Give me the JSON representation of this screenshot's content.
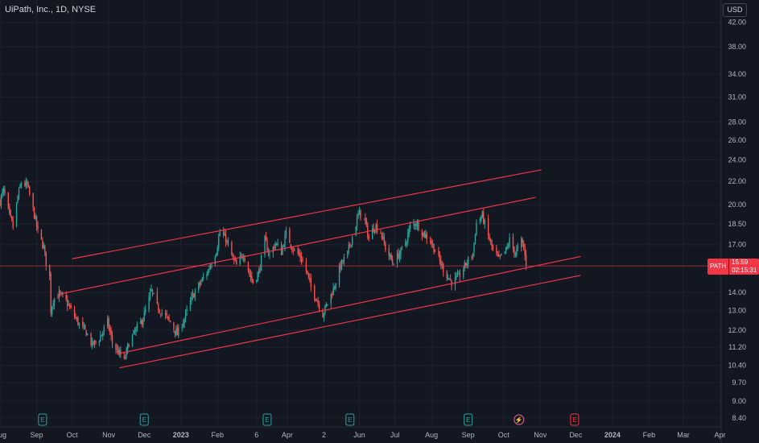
{
  "header": {
    "title": "UiPath, Inc., 1D, NYSE",
    "currency": "USD"
  },
  "price_tag": {
    "symbol": "PATH",
    "price": "15.59",
    "countdown": "02:15:31"
  },
  "colors": {
    "background": "#131722",
    "up": "#26a69a",
    "down": "#ef5350",
    "channel": "#f23645",
    "price_line": "#f23645",
    "earnings": "#26a69a",
    "upcoming_earnings": "#f23645"
  },
  "chart_data": {
    "type": "candlestick",
    "scale": "log",
    "ylim": [
      8.1,
      44.5
    ],
    "y_ticks": [
      42.0,
      38.0,
      34.0,
      31.0,
      28.0,
      26.0,
      24.0,
      22.0,
      20.0,
      18.5,
      17.0,
      15.59,
      14.0,
      13.0,
      12.0,
      11.2,
      10.4,
      9.7,
      9.0,
      8.4
    ],
    "y_tick_labels": [
      "42.00",
      "38.00",
      "34.00",
      "31.00",
      "28.00",
      "26.00",
      "24.00",
      "22.00",
      "20.00",
      "18.50",
      "17.00",
      "15.59",
      "14.00",
      "13.00",
      "12.00",
      "11.20",
      "10.40",
      "9.70",
      "9.00",
      "8.40"
    ],
    "x_range": [
      "2022-08-01",
      "2024-04-02"
    ],
    "x_ticks": [
      {
        "date": "2022-08-01",
        "label": "Aug"
      },
      {
        "date": "2022-09-01",
        "label": "Sep"
      },
      {
        "date": "2022-10-01",
        "label": "Oct"
      },
      {
        "date": "2022-11-01",
        "label": "Nov"
      },
      {
        "date": "2022-12-01",
        "label": "Dec"
      },
      {
        "date": "2023-01-01",
        "label": "2023"
      },
      {
        "date": "2023-02-01",
        "label": "Feb"
      },
      {
        "date": "2023-03-06",
        "label": "6"
      },
      {
        "date": "2023-04-01",
        "label": "Apr"
      },
      {
        "date": "2023-05-02",
        "label": "2"
      },
      {
        "date": "2023-06-01",
        "label": "Jun"
      },
      {
        "date": "2023-07-01",
        "label": "Jul"
      },
      {
        "date": "2023-08-01",
        "label": "Aug"
      },
      {
        "date": "2023-09-01",
        "label": "Sep"
      },
      {
        "date": "2023-10-01",
        "label": "Oct"
      },
      {
        "date": "2023-11-01",
        "label": "Nov"
      },
      {
        "date": "2023-12-01",
        "label": "Dec"
      },
      {
        "date": "2024-01-01",
        "label": "2024"
      },
      {
        "date": "2024-02-01",
        "label": "Feb"
      },
      {
        "date": "2024-03-01",
        "label": "Mar"
      },
      {
        "date": "2024-04-01",
        "label": "Apr"
      }
    ],
    "close_path": [
      [
        "2022-08-01",
        20.3
      ],
      [
        "2022-08-04",
        21.2
      ],
      [
        "2022-08-09",
        19.1
      ],
      [
        "2022-08-12",
        18.3
      ],
      [
        "2022-08-16",
        20.6
      ],
      [
        "2022-08-19",
        21.9
      ],
      [
        "2022-08-24",
        21.6
      ],
      [
        "2022-08-29",
        19.6
      ],
      [
        "2022-09-02",
        17.9
      ],
      [
        "2022-09-07",
        16.8
      ],
      [
        "2022-09-09",
        15.8
      ],
      [
        "2022-09-12",
        14.9
      ],
      [
        "2022-09-13",
        13.0
      ],
      [
        "2022-09-15",
        13.6
      ],
      [
        "2022-09-20",
        13.9
      ],
      [
        "2022-09-26",
        13.5
      ],
      [
        "2022-10-01",
        12.9
      ],
      [
        "2022-10-07",
        12.3
      ],
      [
        "2022-10-13",
        11.9
      ],
      [
        "2022-10-18",
        11.3
      ],
      [
        "2022-10-24",
        11.6
      ],
      [
        "2022-10-31",
        12.4
      ],
      [
        "2022-11-04",
        11.4
      ],
      [
        "2022-11-10",
        10.9
      ],
      [
        "2022-11-14",
        10.6
      ],
      [
        "2022-11-18",
        11.4
      ],
      [
        "2022-11-24",
        12.0
      ],
      [
        "2022-11-30",
        12.6
      ],
      [
        "2022-12-05",
        13.6
      ],
      [
        "2022-12-07",
        14.1
      ],
      [
        "2022-12-12",
        13.2
      ],
      [
        "2022-12-19",
        12.7
      ],
      [
        "2022-12-23",
        12.4
      ],
      [
        "2022-12-29",
        11.8
      ],
      [
        "2023-01-04",
        12.6
      ],
      [
        "2023-01-11",
        13.8
      ],
      [
        "2023-01-18",
        14.6
      ],
      [
        "2023-01-24",
        15.3
      ],
      [
        "2023-01-31",
        16.6
      ],
      [
        "2023-02-03",
        17.9
      ],
      [
        "2023-02-08",
        17.4
      ],
      [
        "2023-02-13",
        16.2
      ],
      [
        "2023-02-17",
        15.6
      ],
      [
        "2023-02-23",
        16.4
      ],
      [
        "2023-02-28",
        15.1
      ],
      [
        "2023-03-03",
        14.6
      ],
      [
        "2023-03-08",
        15.2
      ],
      [
        "2023-03-13",
        17.3
      ],
      [
        "2023-03-17",
        16.3
      ],
      [
        "2023-03-22",
        17.1
      ],
      [
        "2023-03-27",
        16.5
      ],
      [
        "2023-03-31",
        17.8
      ],
      [
        "2023-04-06",
        16.7
      ],
      [
        "2023-04-12",
        16.2
      ],
      [
        "2023-04-17",
        15.3
      ],
      [
        "2023-04-21",
        14.3
      ],
      [
        "2023-04-26",
        13.6
      ],
      [
        "2023-05-01",
        12.8
      ],
      [
        "2023-05-05",
        13.4
      ],
      [
        "2023-05-10",
        14.2
      ],
      [
        "2023-05-16",
        15.6
      ],
      [
        "2023-05-22",
        16.4
      ],
      [
        "2023-05-26",
        17.6
      ],
      [
        "2023-06-01",
        19.4
      ],
      [
        "2023-06-06",
        18.6
      ],
      [
        "2023-06-09",
        17.4
      ],
      [
        "2023-06-14",
        18.4
      ],
      [
        "2023-06-19",
        17.9
      ],
      [
        "2023-06-23",
        16.8
      ],
      [
        "2023-06-29",
        15.8
      ],
      [
        "2023-07-06",
        16.5
      ],
      [
        "2023-07-11",
        17.4
      ],
      [
        "2023-07-14",
        18.3
      ],
      [
        "2023-07-19",
        18.6
      ],
      [
        "2023-07-25",
        17.8
      ],
      [
        "2023-07-31",
        17.3
      ],
      [
        "2023-08-04",
        16.6
      ],
      [
        "2023-08-09",
        15.7
      ],
      [
        "2023-08-14",
        15.0
      ],
      [
        "2023-08-18",
        14.6
      ],
      [
        "2023-08-24",
        14.9
      ],
      [
        "2023-08-30",
        15.7
      ],
      [
        "2023-09-05",
        16.4
      ],
      [
        "2023-09-08",
        18.6
      ],
      [
        "2023-09-13",
        19.1
      ],
      [
        "2023-09-18",
        17.6
      ],
      [
        "2023-09-22",
        16.6
      ],
      [
        "2023-09-27",
        16.0
      ],
      [
        "2023-10-03",
        16.6
      ],
      [
        "2023-10-06",
        17.3
      ],
      [
        "2023-10-11",
        16.4
      ],
      [
        "2023-10-16",
        17.2
      ],
      [
        "2023-10-18",
        16.8
      ],
      [
        "2023-10-20",
        15.59
      ]
    ],
    "channel_lines": [
      {
        "from": [
          "2022-10-01",
          16.05
        ],
        "to": [
          "2023-11-02",
          23.05
        ]
      },
      {
        "from": [
          "2022-09-20",
          13.9
        ],
        "to": [
          "2023-10-28",
          20.6
        ]
      },
      {
        "from": [
          "2022-11-08",
          10.9
        ],
        "to": [
          "2023-12-05",
          16.2
        ]
      },
      {
        "from": [
          "2022-11-10",
          10.3
        ],
        "to": [
          "2023-12-05",
          15.0
        ]
      }
    ],
    "last_price": 15.59,
    "earnings_markers": [
      {
        "date": "2022-09-06",
        "label": "E"
      },
      {
        "date": "2022-12-01",
        "label": "E"
      },
      {
        "date": "2023-03-15",
        "label": "E"
      },
      {
        "date": "2023-05-24",
        "label": "E"
      },
      {
        "date": "2023-09-01",
        "label": "E"
      }
    ],
    "flash_marker": {
      "date": "2023-10-14",
      "label": "⚡"
    },
    "upcoming_earnings": {
      "date": "2023-11-30",
      "label": "E"
    }
  }
}
